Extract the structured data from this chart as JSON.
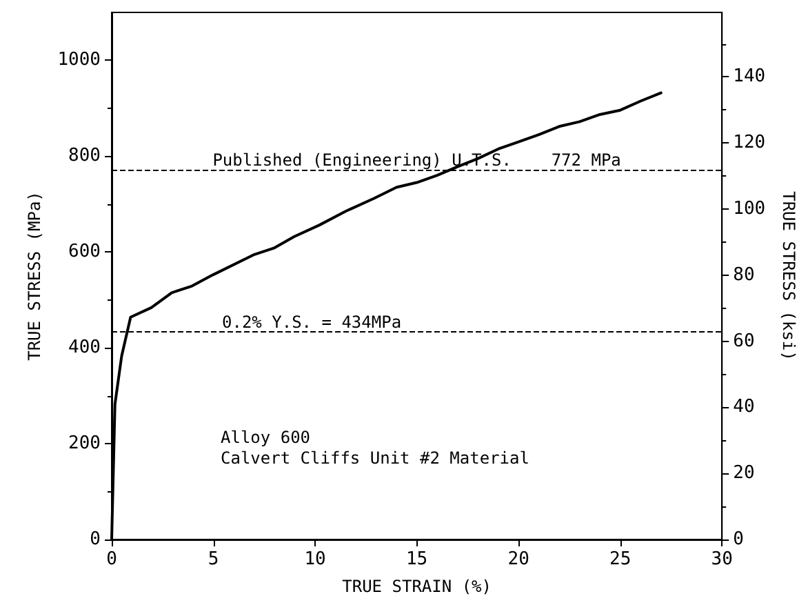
{
  "chart_data": {
    "type": "line",
    "xlabel": "TRUE STRAIN (%)",
    "ylabel": "TRUE STRESS (MPa)",
    "y2label": "TRUE STRESS (ksi)",
    "x": [
      0,
      0.16,
      0.49,
      0.93,
      1.95,
      2.95,
      3.95,
      4.96,
      6.97,
      7.97,
      8.97,
      10.2,
      11.5,
      12.9,
      14.0,
      15,
      16,
      17,
      18,
      19,
      20,
      21,
      22,
      23,
      24,
      25,
      26,
      27
    ],
    "series": [
      {
        "color": "#000000",
        "values": [
          0,
          282,
          383,
          464,
          484,
          515,
          529,
          552,
          594,
          608,
          632,
          656,
          685,
          712,
          735,
          745,
          760,
          778,
          795,
          815,
          830,
          845,
          862,
          872,
          887,
          896,
          915,
          932
        ]
      }
    ],
    "xlim": [
      0,
      30
    ],
    "xticks": [
      0,
      5,
      10,
      15,
      20,
      25,
      30
    ],
    "ylim": [
      0,
      1100
    ],
    "yticks": [
      0,
      200,
      400,
      600,
      800,
      1000
    ],
    "y2lim": [
      0,
      159.5
    ],
    "y2ticks": [
      0,
      20,
      40,
      60,
      80,
      100,
      120,
      140
    ],
    "ref_lines": [
      {
        "axis": "y",
        "value": 772,
        "label": "Published (Engineering) U.T.S.    772 MPa",
        "line_style": "dashed",
        "color": "#000000"
      },
      {
        "axis": "y",
        "value": 434,
        "label": "0.2% Y.S. = 434MPa",
        "line_style": "dashed",
        "color": "#000000"
      }
    ],
    "annotations": [
      "Alloy 600",
      "Calvert Cliffs Unit #2 Material"
    ],
    "grid": false,
    "marker": "none",
    "line_style": "solid"
  }
}
